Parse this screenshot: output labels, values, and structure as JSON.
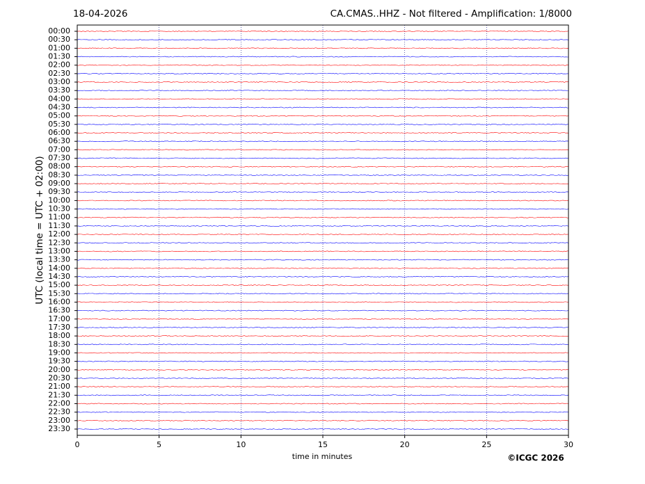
{
  "chart_data": {
    "type": "helicorder",
    "date": "18-04-2026",
    "title": "CA.CMAS..HHZ - Not filtered - Amplification: 1/8000",
    "xlabel": "time in minutes",
    "ylabel": "UTC (local time = UTC + 02:00)",
    "credit": "©ICGC 2026",
    "categories": [
      "00:00",
      "00:30",
      "01:00",
      "01:30",
      "02:00",
      "02:30",
      "03:00",
      "03:30",
      "04:00",
      "04:30",
      "05:00",
      "05:30",
      "06:00",
      "06:30",
      "07:00",
      "07:30",
      "08:00",
      "08:30",
      "09:00",
      "09:30",
      "10:00",
      "10:30",
      "11:00",
      "11:30",
      "12:00",
      "12:30",
      "13:00",
      "13:30",
      "14:00",
      "14:30",
      "15:00",
      "15:30",
      "16:00",
      "16:30",
      "17:00",
      "17:30",
      "18:00",
      "18:30",
      "19:00",
      "19:30",
      "20:00",
      "20:30",
      "21:00",
      "21:30",
      "22:00",
      "22:30",
      "23:00",
      "23:30"
    ],
    "trace_colors": [
      "#ff0000",
      "#0000ff"
    ],
    "xlim": [
      0,
      30
    ],
    "xticks": [
      0,
      5,
      10,
      15,
      20,
      25,
      30
    ],
    "grid": true
  }
}
